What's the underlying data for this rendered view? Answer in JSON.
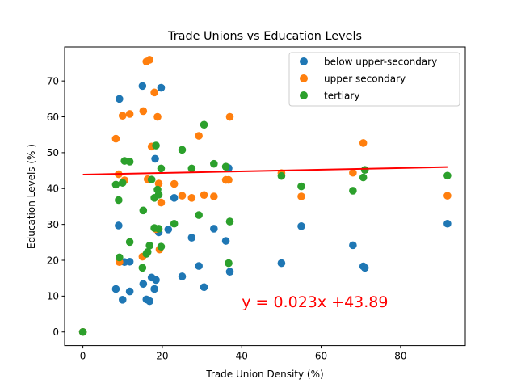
{
  "chart_data": {
    "type": "scatter",
    "title": "Trade Unions vs Education Levels",
    "xlabel": "Trade Union Density (%)",
    "ylabel": "Education Levels (% )",
    "xlim": [
      -4.6,
      96.3
    ],
    "ylim": [
      -3.8,
      79.5
    ],
    "xticks": [
      "0",
      "20",
      "40",
      "60",
      "80"
    ],
    "yticks": [
      "0",
      "10",
      "20",
      "30",
      "40",
      "50",
      "60",
      "70"
    ],
    "xtick_values": [
      0,
      20,
      40,
      60,
      80
    ],
    "ytick_values": [
      0,
      10,
      20,
      30,
      40,
      50,
      60,
      70
    ],
    "grid": false,
    "legend_position": "top-right",
    "series": [
      {
        "name": "below upper-secondary",
        "color": "#1f77b4",
        "points": [
          [
            0,
            0
          ],
          [
            8.3,
            12
          ],
          [
            9,
            29.7
          ],
          [
            9.2,
            65
          ],
          [
            10,
            9
          ],
          [
            10.5,
            19.5
          ],
          [
            11.8,
            19.6
          ],
          [
            11.8,
            11.3
          ],
          [
            15,
            68.6
          ],
          [
            15.2,
            13.4
          ],
          [
            16,
            9.1
          ],
          [
            16.8,
            8.6
          ],
          [
            17.3,
            15.2
          ],
          [
            18,
            12
          ],
          [
            18.4,
            14.5
          ],
          [
            18.2,
            48.3
          ],
          [
            19.1,
            27.8
          ],
          [
            19.7,
            68.1
          ],
          [
            21.5,
            28.6
          ],
          [
            23,
            37.4
          ],
          [
            25,
            15.5
          ],
          [
            27.4,
            26.3
          ],
          [
            29.2,
            18.4
          ],
          [
            30.5,
            12.5
          ],
          [
            33,
            28.8
          ],
          [
            36,
            25.4
          ],
          [
            37,
            16.8
          ],
          [
            36.7,
            45.7
          ],
          [
            50,
            19.2
          ],
          [
            55,
            29.5
          ],
          [
            68,
            24.2
          ],
          [
            70.6,
            18.3
          ],
          [
            71,
            17.9
          ],
          [
            91.8,
            30.2
          ]
        ]
      },
      {
        "name": "upper secondary",
        "color": "#ff7f0e",
        "points": [
          [
            0,
            0
          ],
          [
            8.3,
            53.9
          ],
          [
            9,
            44
          ],
          [
            9.2,
            19.5
          ],
          [
            10,
            60.3
          ],
          [
            10.5,
            42.3
          ],
          [
            11.8,
            60.8
          ],
          [
            15,
            21
          ],
          [
            15.2,
            61.6
          ],
          [
            16,
            75.4
          ],
          [
            16.3,
            42.6
          ],
          [
            16.8,
            75.9
          ],
          [
            17.3,
            51.7
          ],
          [
            18,
            66.8
          ],
          [
            18.4,
            28.7
          ],
          [
            18.8,
            60
          ],
          [
            19.1,
            41.4
          ],
          [
            19.7,
            36.1
          ],
          [
            19.3,
            23
          ],
          [
            23,
            41.3
          ],
          [
            25,
            38
          ],
          [
            27.4,
            37.4
          ],
          [
            29.2,
            54.7
          ],
          [
            30.5,
            38.2
          ],
          [
            33,
            37.8
          ],
          [
            36,
            42.4
          ],
          [
            36.7,
            42.4
          ],
          [
            37,
            60
          ],
          [
            50,
            44.3
          ],
          [
            55,
            37.8
          ],
          [
            68,
            44.4
          ],
          [
            70.6,
            52.7
          ],
          [
            91.8,
            38
          ]
        ]
      },
      {
        "name": "tertiary",
        "color": "#2ca02c",
        "points": [
          [
            0,
            0
          ],
          [
            8.3,
            41.1
          ],
          [
            9,
            36.8
          ],
          [
            9.2,
            20.8
          ],
          [
            10,
            41.6
          ],
          [
            10.5,
            47.7
          ],
          [
            11.8,
            25.1
          ],
          [
            11.8,
            47.5
          ],
          [
            15,
            17.9
          ],
          [
            15.2,
            33.9
          ],
          [
            16,
            21.8
          ],
          [
            16.3,
            22.3
          ],
          [
            16.8,
            24.1
          ],
          [
            17.3,
            42.5
          ],
          [
            18,
            37.4
          ],
          [
            18,
            29
          ],
          [
            18.4,
            52
          ],
          [
            18.8,
            39.7
          ],
          [
            19.1,
            38.3
          ],
          [
            19.1,
            28.8
          ],
          [
            19.7,
            45.6
          ],
          [
            19.7,
            23.8
          ],
          [
            23,
            30.2
          ],
          [
            25,
            50.8
          ],
          [
            27.4,
            45.6
          ],
          [
            29.2,
            32.6
          ],
          [
            30.5,
            57.8
          ],
          [
            33,
            46.9
          ],
          [
            36,
            46.1
          ],
          [
            36.7,
            19.2
          ],
          [
            37,
            30.8
          ],
          [
            50,
            43.5
          ],
          [
            55,
            40.6
          ],
          [
            68,
            39.4
          ],
          [
            70.6,
            43.1
          ],
          [
            71,
            45.2
          ],
          [
            91.8,
            43.6
          ]
        ]
      }
    ],
    "trendline": {
      "label": "y = 0.023x +43.89",
      "slope": 0.023,
      "intercept": 43.89,
      "x_range": [
        0,
        91.8
      ],
      "color": "#ff0000",
      "label_anchor": [
        40,
        8.5
      ]
    }
  }
}
